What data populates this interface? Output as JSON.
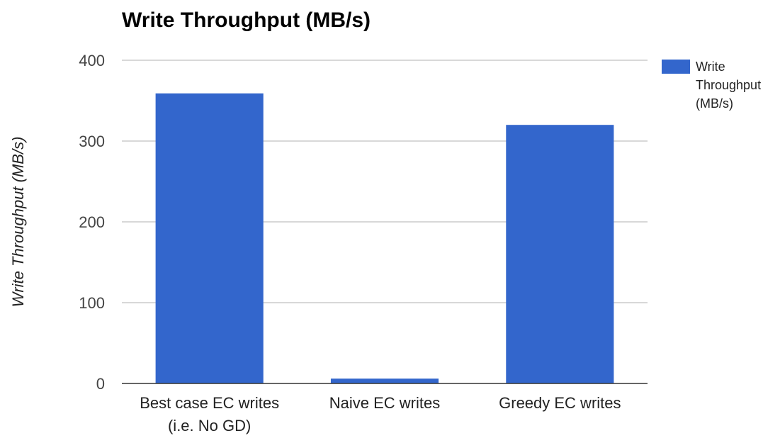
{
  "chart_data": {
    "type": "bar",
    "title": "Write Throughput (MB/s)",
    "xlabel": "",
    "ylabel": "Write Throughput (MB/s)",
    "categories": [
      [
        "Best case EC writes",
        "(i.e. No GD)"
      ],
      [
        "Naive EC writes"
      ],
      [
        "Greedy EC writes"
      ]
    ],
    "series": [
      {
        "name": "Write Throughput (MB/s)",
        "color": "#3366cc",
        "values": [
          359,
          6,
          320
        ]
      }
    ],
    "ylim": [
      0,
      400
    ],
    "yticks": [
      0,
      100,
      200,
      300,
      400
    ],
    "grid": true,
    "legend_position": "right"
  }
}
